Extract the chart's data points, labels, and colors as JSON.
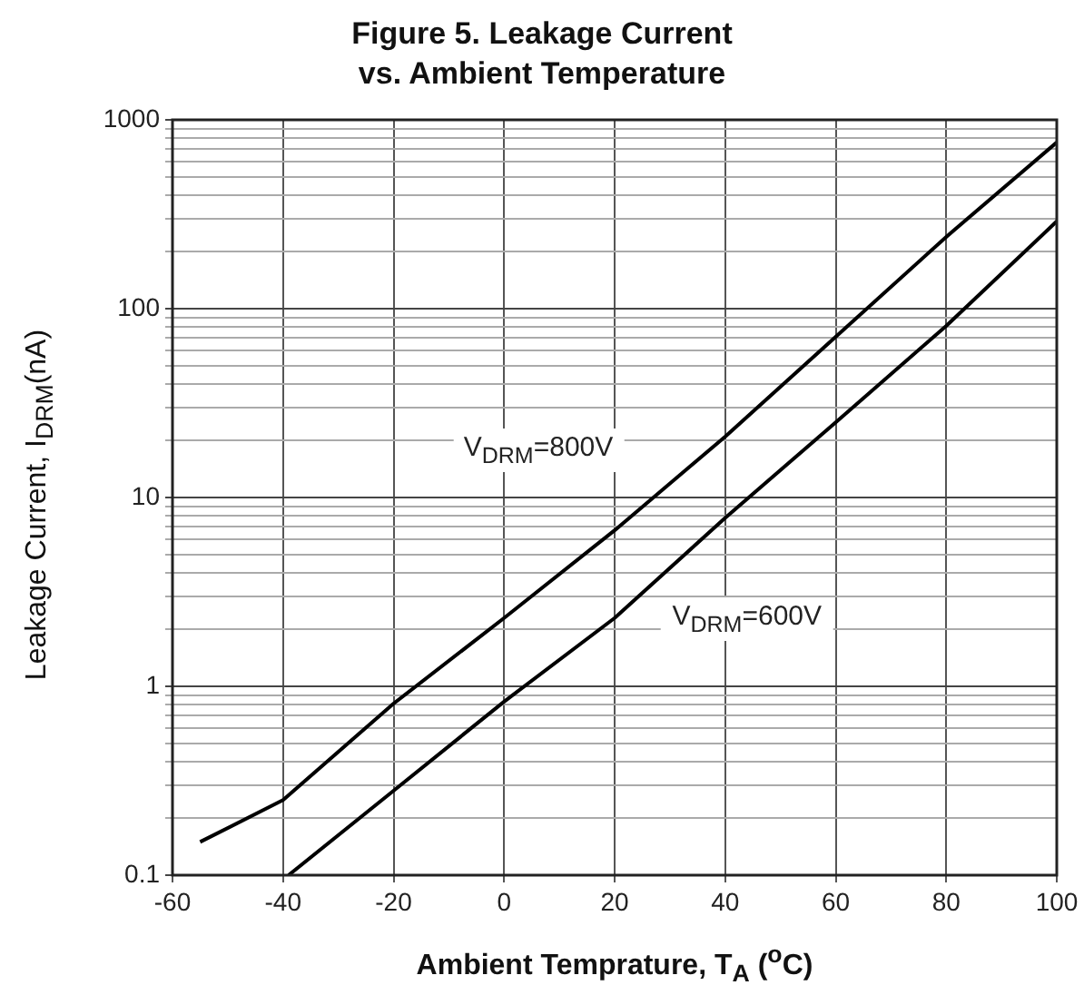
{
  "chart_data": {
    "type": "line",
    "title": "Figure 5. Leakage Current\nvs. Ambient Temperature",
    "xlabel": "Ambient Temprature, T$_{A}$ ($^{o}$C)",
    "ylabel": "Leakage Current, I$_{DRM}$(nA)",
    "series": [
      {
        "name": "V$_{DRM}$=800V",
        "color": "#000000",
        "x": [
          -55,
          -40,
          -20,
          0,
          20,
          40,
          60,
          80,
          100
        ],
        "values": [
          0.15,
          0.25,
          0.81,
          2.3,
          6.7,
          21,
          71,
          240,
          760
        ]
      },
      {
        "name": "V$_{DRM}$=600V",
        "color": "#000000",
        "x": [
          -39,
          -20,
          0,
          20,
          40,
          60,
          80,
          100
        ],
        "values": [
          0.1,
          0.28,
          0.83,
          2.3,
          7.8,
          25,
          81,
          290
        ]
      }
    ],
    "log": "y",
    "grid": true,
    "legend": false,
    "marker": "none",
    "line_style": "solid",
    "xlim": [
      -60,
      100
    ],
    "xticks": [
      -60,
      -40,
      -20,
      0,
      20,
      40,
      60,
      80,
      100
    ],
    "ylim": [
      0.1,
      1000
    ],
    "yticks": [
      0.1,
      {
        "value": 0.2,
        "label": null
      },
      {
        "value": 0.3,
        "label": null
      },
      {
        "value": 0.4,
        "label": null
      },
      {
        "value": 0.5,
        "label": null
      },
      {
        "value": 0.6,
        "label": null
      },
      {
        "value": 0.7,
        "label": null
      },
      {
        "value": 0.8,
        "label": null
      },
      {
        "value": 0.9,
        "label": null
      },
      1,
      {
        "value": 2,
        "label": null
      },
      {
        "value": 3,
        "label": null
      },
      {
        "value": 4,
        "label": null
      },
      {
        "value": 5,
        "label": null
      },
      {
        "value": 6,
        "label": null
      },
      {
        "value": 7,
        "label": null
      },
      {
        "value": 8,
        "label": null
      },
      {
        "value": 9,
        "label": null
      },
      10,
      {
        "value": 20,
        "label": null
      },
      {
        "value": 30,
        "label": null
      },
      {
        "value": 40,
        "label": null
      },
      {
        "value": 50,
        "label": null
      },
      {
        "value": 60,
        "label": null
      },
      {
        "value": 70,
        "label": null
      },
      {
        "value": 80,
        "label": null
      },
      {
        "value": 90,
        "label": null
      },
      100,
      {
        "value": 200,
        "label": null
      },
      {
        "value": 300,
        "label": null
      },
      {
        "value": 400,
        "label": null
      },
      {
        "value": 500,
        "label": null
      },
      {
        "value": 600,
        "label": null
      },
      {
        "value": 700,
        "label": null
      },
      {
        "value": 800,
        "label": null
      },
      {
        "value": 900,
        "label": null
      },
      1000
    ]
  }
}
